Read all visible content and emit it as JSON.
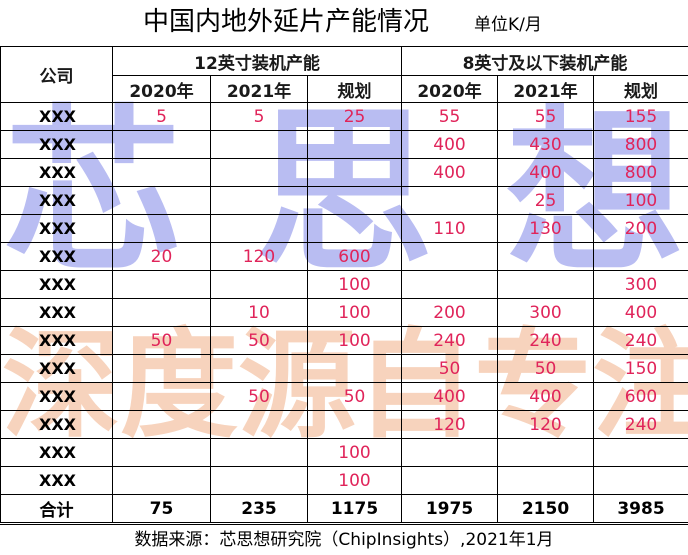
{
  "title": "中国内地外延片产能情况",
  "unit": "单位K/月",
  "watermark": {
    "line1": [
      "芯",
      "思",
      "想"
    ],
    "line2": [
      "深",
      "度",
      "源",
      "自",
      "专",
      "注"
    ]
  },
  "headers": {
    "company": "公司",
    "group12": "12英寸装机产能",
    "group8": "8英寸及以下装机产能",
    "sub": [
      "2020年",
      "2021年",
      "规划",
      "2020年",
      "2021年",
      "规划"
    ]
  },
  "rows": [
    {
      "company": "XXX",
      "values": [
        "5",
        "5",
        "25",
        "55",
        "55",
        "155"
      ]
    },
    {
      "company": "XXX",
      "values": [
        "",
        "",
        "",
        "400",
        "430",
        "800"
      ]
    },
    {
      "company": "XXX",
      "values": [
        "",
        "",
        "",
        "400",
        "400",
        "800"
      ]
    },
    {
      "company": "XXX",
      "values": [
        "",
        "",
        "",
        "",
        "25",
        "100"
      ]
    },
    {
      "company": "XXX",
      "values": [
        "",
        "",
        "",
        "110",
        "130",
        "200"
      ]
    },
    {
      "company": "XXX",
      "values": [
        "20",
        "120",
        "600",
        "",
        "",
        ""
      ]
    },
    {
      "company": "XXX",
      "values": [
        "",
        "",
        "100",
        "",
        "",
        "300"
      ]
    },
    {
      "company": "XXX",
      "values": [
        "",
        "10",
        "100",
        "200",
        "300",
        "400"
      ]
    },
    {
      "company": "XXX",
      "values": [
        "50",
        "50",
        "100",
        "240",
        "240",
        "240"
      ]
    },
    {
      "company": "XXX",
      "values": [
        "",
        "",
        "",
        "50",
        "50",
        "150"
      ]
    },
    {
      "company": "XXX",
      "values": [
        "",
        "50",
        "50",
        "400",
        "400",
        "600"
      ]
    },
    {
      "company": "XXX",
      "values": [
        "",
        "",
        "",
        "120",
        "120",
        "240"
      ]
    },
    {
      "company": "XXX",
      "values": [
        "",
        "",
        "100",
        "",
        "",
        ""
      ]
    },
    {
      "company": "XXX",
      "values": [
        "",
        "",
        "100",
        "",
        "",
        ""
      ]
    }
  ],
  "total": {
    "label": "合计",
    "values": [
      "75",
      "235",
      "1175",
      "1975",
      "2150",
      "3985"
    ]
  },
  "source": "数据来源：芯思想研究院（ChipInsights）,2021年1月"
}
